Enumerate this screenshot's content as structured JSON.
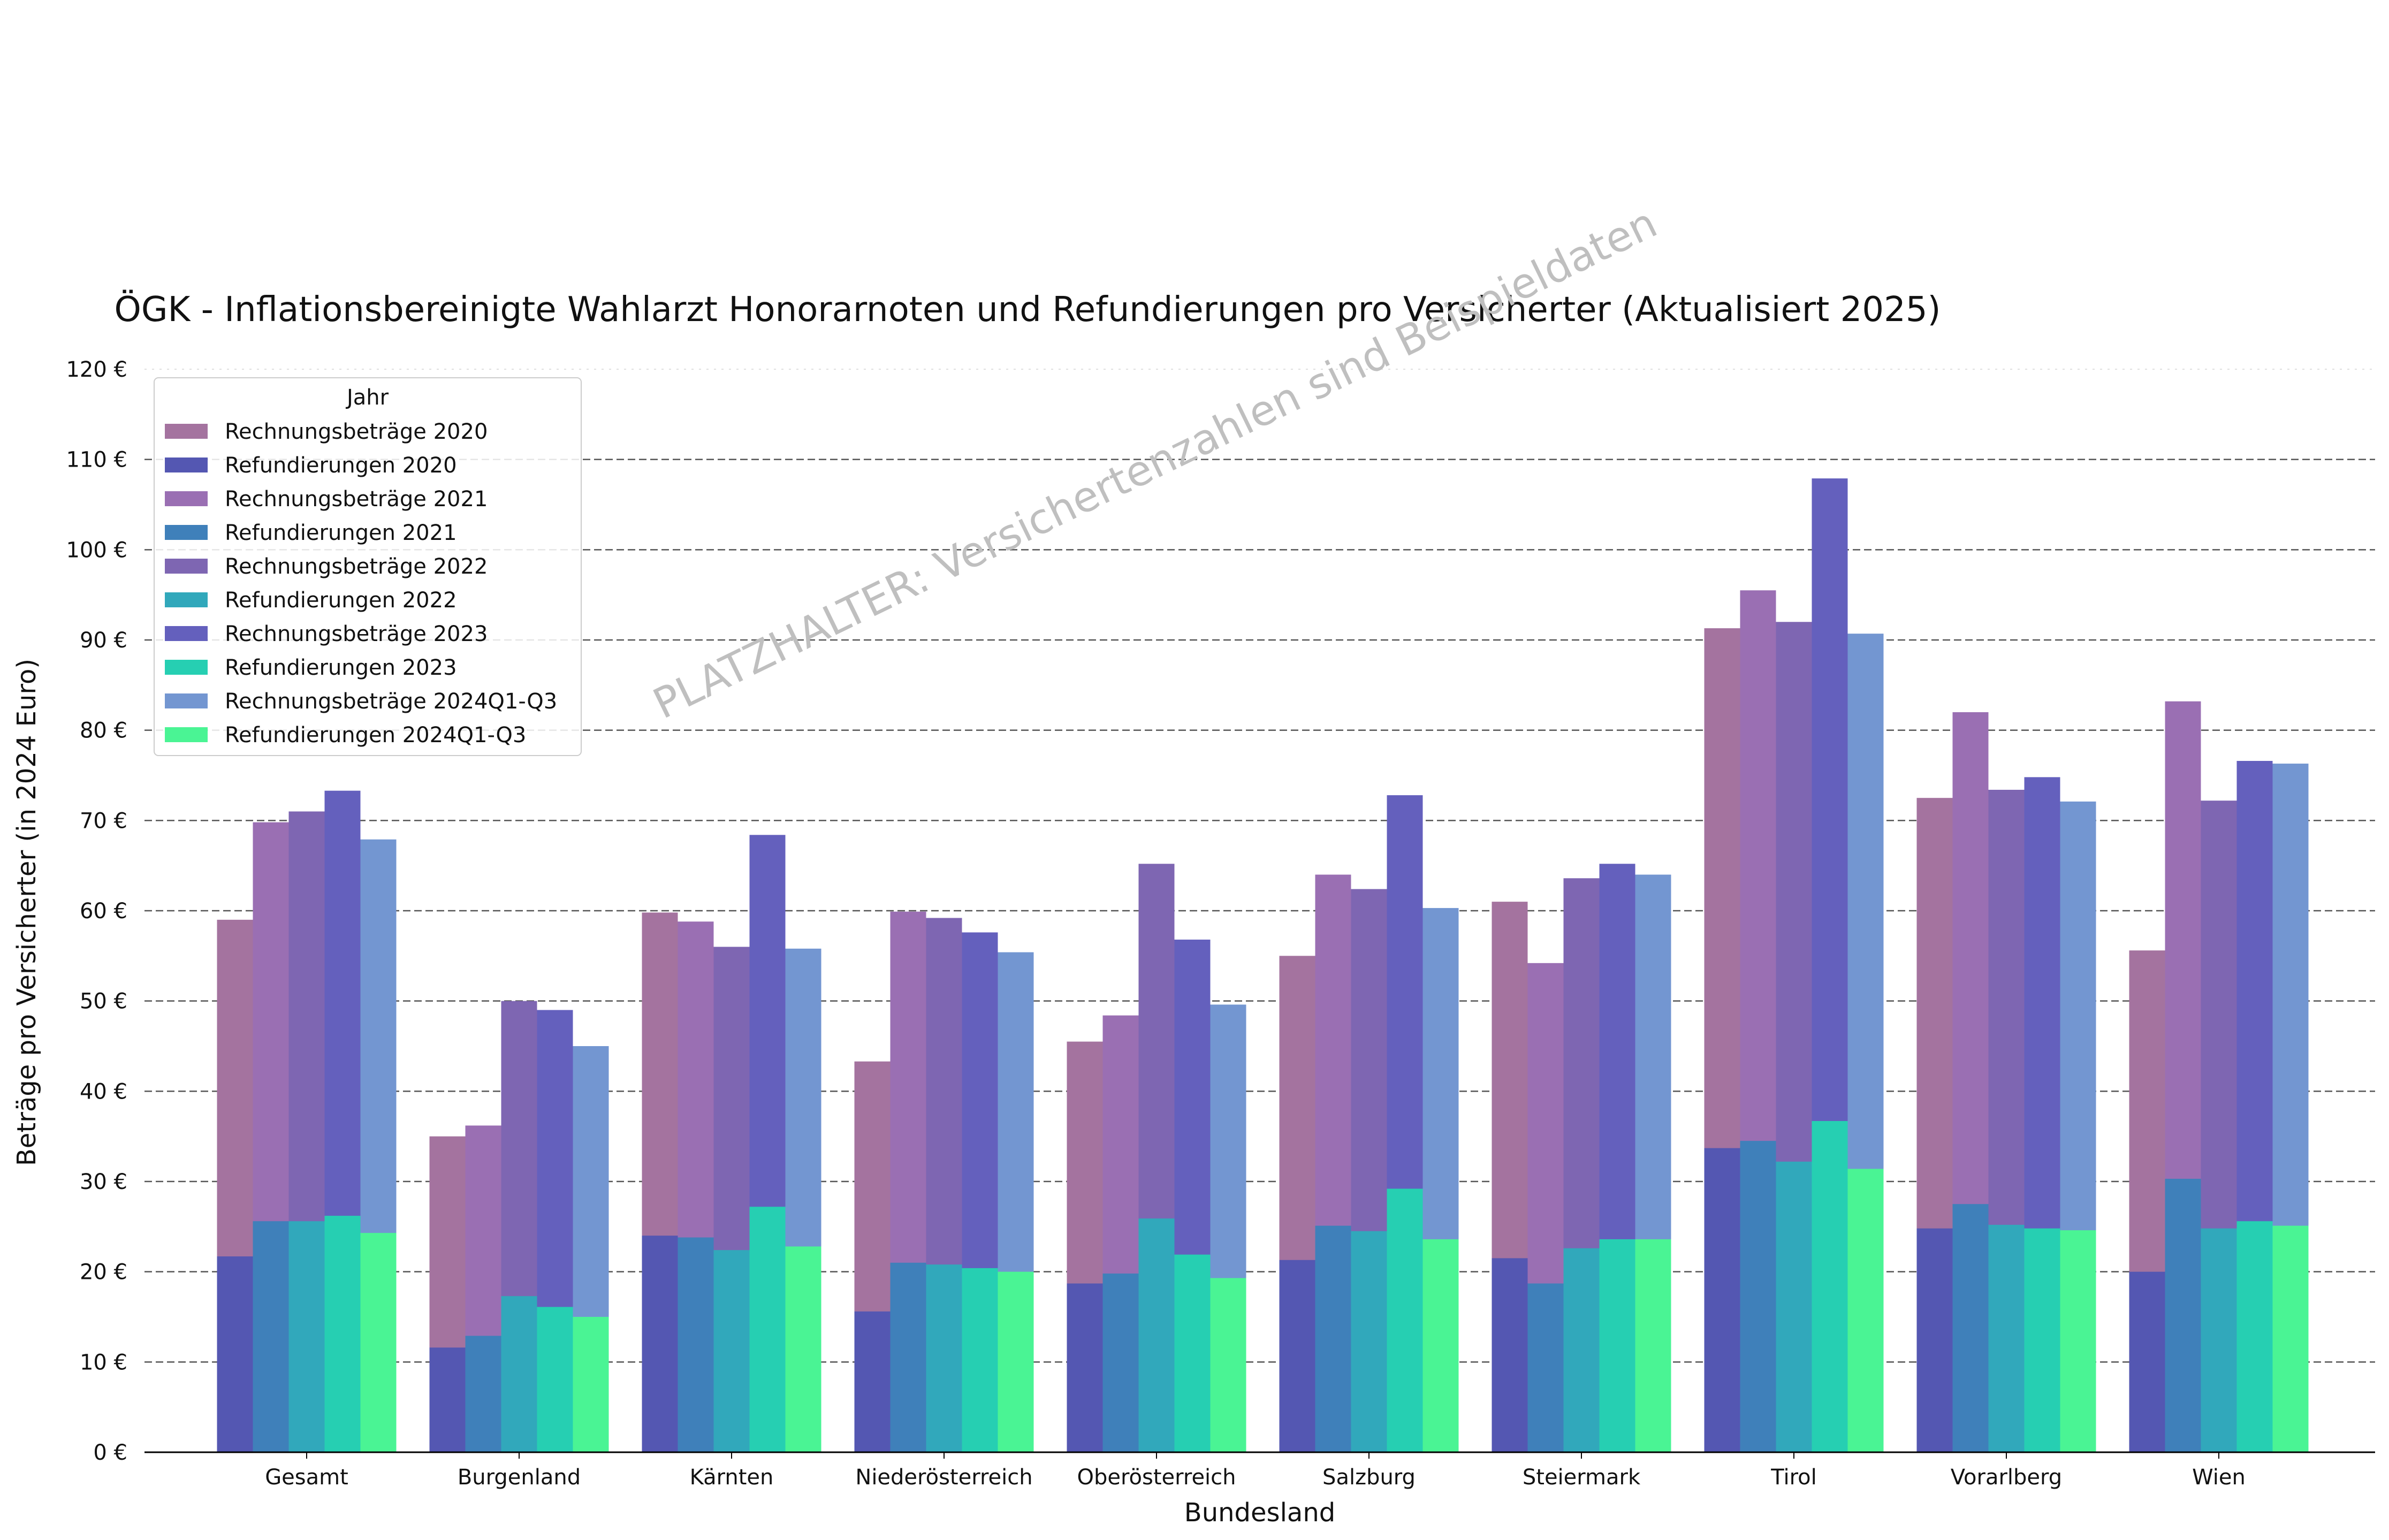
{
  "chart_data": {
    "type": "bar",
    "title": "ÖGK - Inflationsbereinigte Wahlarzt Honorarnoten und Refundierungen pro Versicherter (Aktualisiert 2025)",
    "xlabel": "Bundesland",
    "ylabel": "Beträge pro Versicherter (in 2024 Euro)",
    "watermark": "PLATZHALTER: Versichertenzahlen sind Beispieldaten",
    "ylim": [
      0,
      120
    ],
    "yticks": [
      0,
      10,
      20,
      30,
      40,
      50,
      60,
      70,
      80,
      90,
      100,
      110,
      120
    ],
    "ytick_labels": [
      "0 €",
      "10 €",
      "20 €",
      "30 €",
      "40 €",
      "50 €",
      "60 €",
      "70 €",
      "80 €",
      "90 €",
      "100 €",
      "110 €",
      "120 €"
    ],
    "grid": "horizontal dashed",
    "legend": {
      "title": "Jahr",
      "placement": "top-left"
    },
    "categories": [
      "Gesamt",
      "Burgenland",
      "Kärnten",
      "Niederösterreich",
      "Oberösterreich",
      "Salzburg",
      "Steiermark",
      "Tirol",
      "Vorarlberg",
      "Wien"
    ],
    "years": [
      "2020",
      "2021",
      "2022",
      "2023",
      "2024Q1-Q3"
    ],
    "series": [
      {
        "name": "Rechnungsbeträge 2020",
        "kind": "rechnung",
        "year_index": 0,
        "color": "#a4739f",
        "values": [
          59.0,
          35.0,
          59.8,
          43.3,
          45.5,
          55.0,
          61.0,
          91.3,
          72.5,
          55.6
        ]
      },
      {
        "name": "Refundierungen 2020",
        "kind": "refund",
        "year_index": 0,
        "color": "#5457b2",
        "values": [
          21.7,
          11.6,
          24.0,
          15.6,
          18.7,
          21.3,
          21.5,
          33.7,
          24.8,
          20.0
        ]
      },
      {
        "name": "Rechnungsbeträge 2021",
        "kind": "rechnung",
        "year_index": 1,
        "color": "#9a6fb3",
        "values": [
          69.8,
          36.2,
          58.8,
          59.9,
          48.4,
          64.0,
          54.2,
          95.5,
          82.0,
          83.2
        ]
      },
      {
        "name": "Refundierungen 2021",
        "kind": "refund",
        "year_index": 1,
        "color": "#3f80ba",
        "values": [
          25.6,
          12.9,
          23.8,
          21.0,
          19.8,
          25.1,
          18.7,
          34.5,
          27.5,
          30.3
        ]
      },
      {
        "name": "Rechnungsbeträge 2022",
        "kind": "rechnung",
        "year_index": 2,
        "color": "#7e66b2",
        "values": [
          71.0,
          50.0,
          56.0,
          59.2,
          65.2,
          62.4,
          63.6,
          92.0,
          73.4,
          72.2
        ]
      },
      {
        "name": "Refundierungen 2022",
        "kind": "refund",
        "year_index": 2,
        "color": "#31a8bb",
        "values": [
          25.6,
          17.3,
          22.4,
          20.8,
          25.9,
          24.5,
          22.6,
          32.2,
          25.2,
          24.8
        ]
      },
      {
        "name": "Rechnungsbeträge 2023",
        "kind": "rechnung",
        "year_index": 3,
        "color": "#6460bd",
        "values": [
          73.3,
          49.0,
          68.4,
          57.6,
          56.8,
          72.8,
          65.2,
          107.9,
          74.8,
          76.6
        ]
      },
      {
        "name": "Refundierungen 2023",
        "kind": "refund",
        "year_index": 3,
        "color": "#26cfb2",
        "values": [
          26.2,
          16.1,
          27.2,
          20.4,
          21.9,
          29.2,
          23.6,
          36.7,
          24.8,
          25.6
        ]
      },
      {
        "name": "Rechnungsbeträge 2024Q1-Q3",
        "kind": "rechnung",
        "year_index": 4,
        "color": "#7396d1",
        "values": [
          67.9,
          45.0,
          55.8,
          55.4,
          49.6,
          60.3,
          64.0,
          90.7,
          72.1,
          76.3
        ]
      },
      {
        "name": "Refundierungen 2024Q1-Q3",
        "kind": "refund",
        "year_index": 4,
        "color": "#4af494",
        "values": [
          24.3,
          15.0,
          22.8,
          20.0,
          19.3,
          23.6,
          23.6,
          31.4,
          24.6,
          25.1
        ]
      }
    ]
  }
}
